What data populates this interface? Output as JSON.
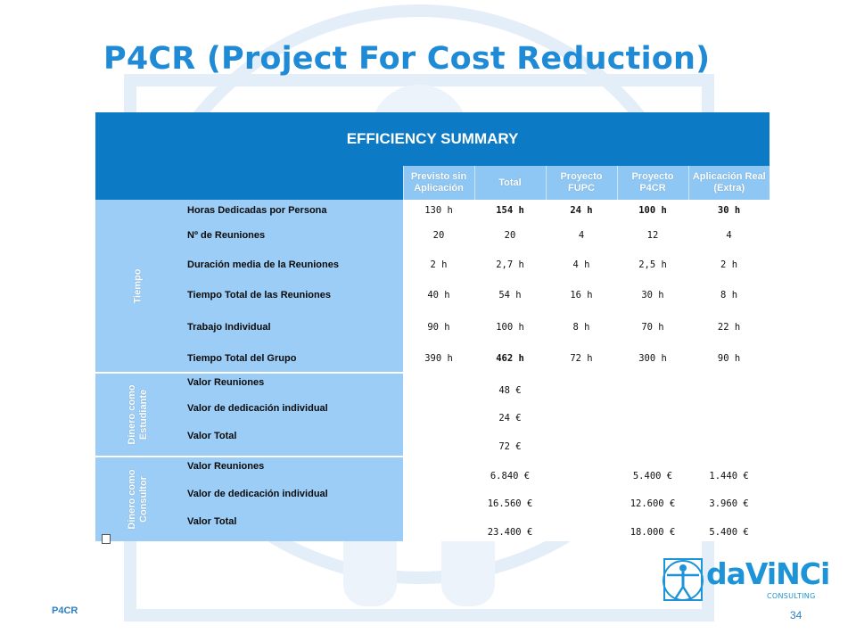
{
  "slide": {
    "title": "P4CR (Project For Cost Reduction)",
    "footer_left": "P4CR",
    "page_number": "34"
  },
  "logo": {
    "brand": "daViNCi",
    "sub": "CONSULTING"
  },
  "table": {
    "title": "EFFICIENCY SUMMARY",
    "columns": [
      "Previsto sin Aplicación",
      "Total",
      "Proyecto FUPC",
      "Proyecto P4CR",
      "Aplicación Real (Extra)"
    ],
    "groups": {
      "tiempo": "Tiempo",
      "estudiante": "Dinero como Estudiante",
      "consultor": "Dinero como Consultor"
    },
    "tiempo_rows": [
      {
        "label": "Horas Dedicadas por Persona",
        "values": [
          "130 h",
          "154 h",
          "24 h",
          "100 h",
          "30 h"
        ]
      },
      {
        "label": "Nº de Reuniones",
        "values": [
          "20",
          "20",
          "4",
          "12",
          "4"
        ]
      },
      {
        "label": "Duración media de la Reuniones",
        "values": [
          "2 h",
          "2,7 h",
          "4 h",
          "2,5 h",
          "2 h"
        ]
      },
      {
        "label": "Tiempo Total de las Reuniones",
        "values": [
          "40 h",
          "54 h",
          "16 h",
          "30 h",
          "8 h"
        ]
      },
      {
        "label": "Trabajo Individual",
        "values": [
          "90 h",
          "100 h",
          "8 h",
          "70 h",
          "22 h"
        ]
      },
      {
        "label": "Tiempo Total del Grupo",
        "values": [
          "390 h",
          "462 h",
          "72 h",
          "300 h",
          "90 h"
        ]
      }
    ],
    "estudiante_rows": [
      {
        "label": "Valor Reuniones",
        "values": [
          "",
          "48 €",
          "",
          "",
          ""
        ]
      },
      {
        "label": "Valor de dedicación individual",
        "values": [
          "",
          "24 €",
          "",
          "",
          ""
        ]
      },
      {
        "label": "Valor Total",
        "values": [
          "",
          "72 €",
          "",
          "",
          ""
        ]
      }
    ],
    "consultor_rows": [
      {
        "label": "Valor Reuniones",
        "values": [
          "",
          "6.840 €",
          "",
          "5.400 €",
          "1.440 €"
        ]
      },
      {
        "label": "Valor de dedicación individual",
        "values": [
          "",
          "16.560 €",
          "",
          "12.600 €",
          "3.960 €"
        ]
      },
      {
        "label": "Valor Total",
        "values": [
          "",
          "23.400 €",
          "",
          "18.000 €",
          "5.400 €"
        ]
      }
    ]
  }
}
